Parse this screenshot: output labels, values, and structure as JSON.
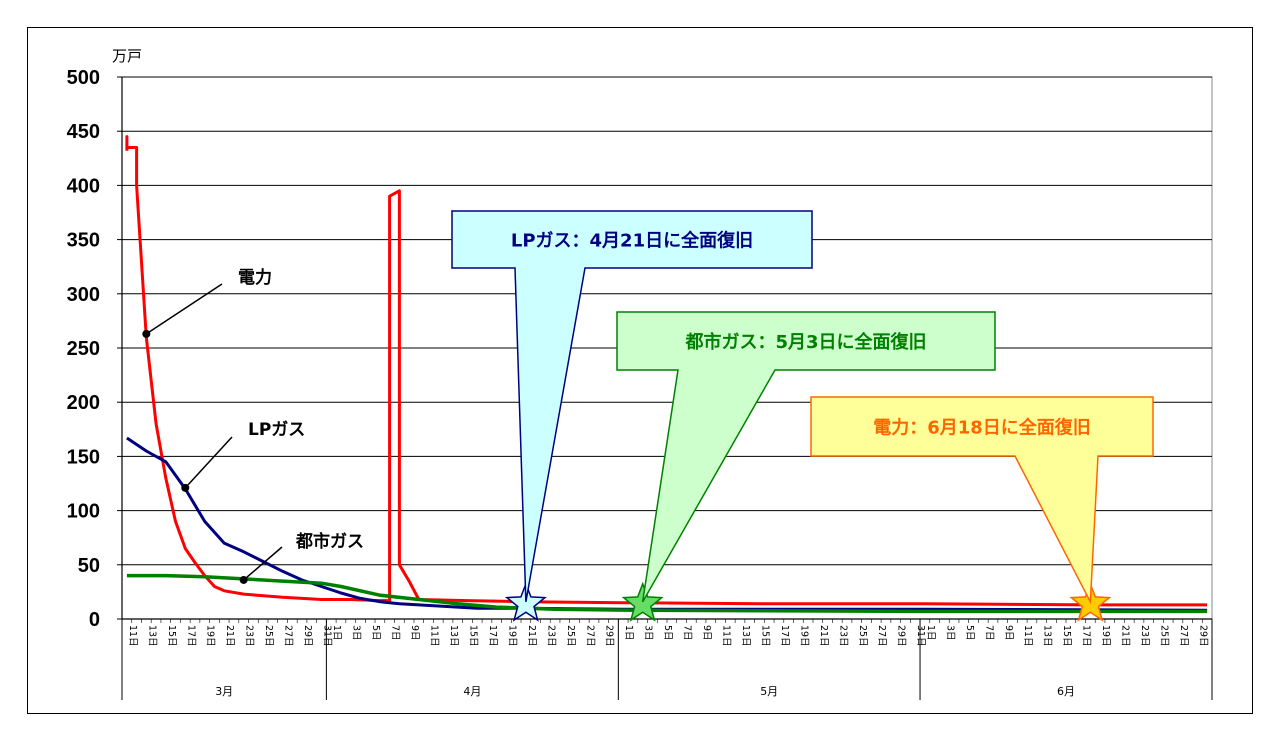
{
  "chart_data": {
    "type": "line",
    "unit_label": "万戸",
    "ylim": [
      0,
      500
    ],
    "yticks": [
      0,
      50,
      100,
      150,
      200,
      250,
      300,
      350,
      400,
      450,
      500
    ],
    "grid": true,
    "x_start": "3月11日",
    "x_end": "6月30日",
    "months": [
      "3月",
      "4月",
      "5月",
      "6月"
    ],
    "series": [
      {
        "name": "電力",
        "color": "#ff0000",
        "points": [
          [
            "3/11",
            432
          ],
          [
            "3/11",
            445
          ],
          [
            "3/11",
            435
          ],
          [
            "3/12",
            435
          ],
          [
            "3/12",
            400
          ],
          [
            "3/13",
            260
          ],
          [
            "3/14",
            180
          ],
          [
            "3/15",
            130
          ],
          [
            "3/16",
            90
          ],
          [
            "3/17",
            65
          ],
          [
            "3/18",
            52
          ],
          [
            "3/19",
            40
          ],
          [
            "3/20",
            30
          ],
          [
            "3/21",
            26
          ],
          [
            "3/23",
            23
          ],
          [
            "3/27",
            20
          ],
          [
            "3/31",
            18
          ],
          [
            "4/3",
            18
          ],
          [
            "4/6",
            17
          ],
          [
            "4/7",
            17
          ],
          [
            "4/7",
            390
          ],
          [
            "4/8",
            395
          ],
          [
            "4/8",
            260
          ],
          [
            "4/8",
            50
          ],
          [
            "4/9",
            35
          ],
          [
            "4/10",
            18
          ],
          [
            "4/15",
            17
          ],
          [
            "4/21",
            16
          ],
          [
            "5/1",
            15
          ],
          [
            "5/15",
            14
          ],
          [
            "6/1",
            14
          ],
          [
            "6/18",
            13
          ],
          [
            "6/30",
            13
          ]
        ]
      },
      {
        "name": "LPガス",
        "color": "#000080",
        "points": [
          [
            "3/11",
            167
          ],
          [
            "3/13",
            155
          ],
          [
            "3/15",
            145
          ],
          [
            "3/17",
            120
          ],
          [
            "3/19",
            90
          ],
          [
            "3/21",
            70
          ],
          [
            "3/23",
            62
          ],
          [
            "3/25",
            53
          ],
          [
            "3/27",
            44
          ],
          [
            "3/29",
            36
          ],
          [
            "3/31",
            30
          ],
          [
            "4/2",
            24
          ],
          [
            "4/4",
            19
          ],
          [
            "4/6",
            16
          ],
          [
            "4/8",
            14
          ],
          [
            "4/12",
            12
          ],
          [
            "4/16",
            10
          ],
          [
            "4/21",
            10
          ],
          [
            "5/1",
            9
          ],
          [
            "6/1",
            9
          ],
          [
            "6/30",
            8
          ]
        ]
      },
      {
        "name": "都市ガス",
        "color": "#008000",
        "points": [
          [
            "3/11",
            40
          ],
          [
            "3/15",
            40
          ],
          [
            "3/19",
            39
          ],
          [
            "3/23",
            37
          ],
          [
            "3/27",
            35
          ],
          [
            "3/31",
            33
          ],
          [
            "4/2",
            30
          ],
          [
            "4/6",
            22
          ],
          [
            "4/10",
            18
          ],
          [
            "4/14",
            14
          ],
          [
            "4/18",
            11
          ],
          [
            "4/24",
            9
          ],
          [
            "5/3",
            8
          ],
          [
            "6/1",
            7
          ],
          [
            "6/30",
            7
          ]
        ]
      }
    ],
    "series_labels": {
      "power": "電力",
      "lpgas": "LPガス",
      "citygas": "都市ガス"
    },
    "callouts": [
      {
        "text": "LPガス：4月21日に全面復旧",
        "date": "4/21",
        "value": 14,
        "fill": "#ccffff",
        "text_color": "#000080",
        "star": "#ccffff"
      },
      {
        "text": "都市ガス：5月3日に全面復旧",
        "date": "5/3",
        "value": 14,
        "fill": "#ccffcc",
        "text_color": "#008000",
        "star": "#66dd66"
      },
      {
        "text": "電力：6月18日に全面復旧",
        "date": "6/18",
        "value": 14,
        "fill": "#ffff99",
        "text_color": "#ff6600",
        "star": "#ffcc00"
      }
    ]
  }
}
